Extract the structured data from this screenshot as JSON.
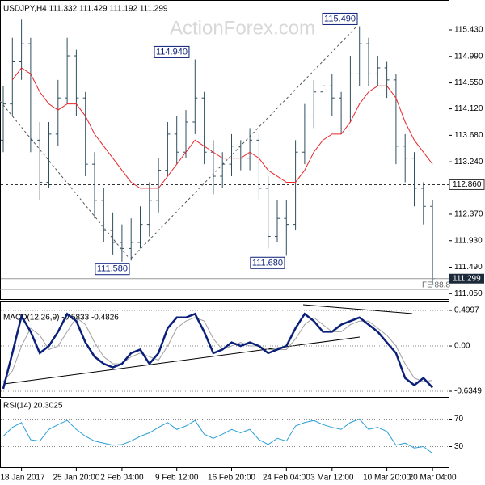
{
  "chart_data": [
    {
      "type": "ohlc",
      "title": "USDJPY,H4  111.332 111.429 111.192 111.299",
      "watermark": "ActionForex.com",
      "color": "#2f4f5f",
      "categories": [
        null,
        null,
        "18 Jan 2017",
        null,
        null,
        null,
        null,
        null,
        "25 Jan 20:00",
        null,
        null,
        null,
        null,
        "2 Feb 04:00",
        null,
        null,
        null,
        null,
        null,
        "9 Feb 12:00",
        null,
        null,
        null,
        null,
        null,
        "16 Feb 20:00",
        null,
        null,
        null,
        null,
        null,
        "24 Feb 04:00",
        null,
        null,
        null,
        null,
        "3 Mar 12:00",
        null,
        null,
        null,
        null,
        null,
        "10 Mar 20:00",
        null,
        null,
        null,
        null,
        "20 Mar 04:00"
      ],
      "open": [
        113.6,
        114.2,
        114.9,
        115.2,
        113.6,
        112.9,
        113.7,
        114.3,
        115.0,
        114.3,
        113.2,
        112.6,
        112.1,
        111.9,
        111.8,
        111.9,
        112.2,
        112.6,
        113.1,
        113.7,
        113.4,
        113.9,
        114.3,
        113.4,
        113.0,
        113.2,
        113.5,
        113.3,
        113.6,
        112.8,
        112.0,
        112.3,
        112.2,
        113.4,
        114.0,
        114.4,
        114.5,
        114.3,
        114.0,
        114.7,
        115.2,
        114.7,
        114.8,
        114.6,
        113.5,
        113.3,
        112.8,
        112.5
      ],
      "high": [
        114.5,
        115.3,
        115.6,
        115.3,
        113.9,
        113.9,
        114.6,
        115.3,
        115.1,
        114.4,
        113.4,
        112.8,
        112.4,
        112.2,
        112.3,
        112.5,
        112.9,
        113.3,
        113.9,
        114.0,
        114.1,
        114.94,
        114.4,
        113.6,
        113.4,
        113.7,
        113.6,
        113.8,
        113.7,
        113.0,
        112.6,
        112.6,
        113.6,
        114.2,
        114.6,
        114.8,
        114.7,
        114.4,
        115.0,
        115.49,
        115.3,
        115.0,
        114.9,
        114.7,
        113.7,
        113.4,
        112.9,
        112.6
      ],
      "low": [
        113.4,
        114.0,
        114.6,
        113.4,
        112.6,
        112.8,
        113.5,
        114.2,
        114.0,
        113.0,
        112.3,
        111.9,
        111.7,
        111.58,
        111.6,
        111.8,
        112.0,
        112.4,
        113.0,
        113.2,
        113.3,
        113.7,
        113.2,
        112.7,
        112.8,
        113.0,
        113.1,
        113.1,
        112.6,
        111.8,
        111.9,
        111.68,
        112.1,
        113.2,
        113.8,
        114.2,
        114.0,
        113.7,
        113.9,
        114.5,
        114.5,
        114.5,
        114.3,
        113.2,
        112.9,
        112.5,
        112.2,
        111.192
      ],
      "close": [
        114.2,
        114.9,
        115.2,
        113.6,
        112.9,
        113.7,
        114.3,
        115.0,
        114.3,
        113.2,
        112.6,
        112.1,
        111.9,
        111.8,
        111.9,
        112.2,
        112.6,
        113.1,
        113.7,
        113.4,
        113.9,
        114.3,
        113.4,
        113.0,
        113.2,
        113.5,
        113.3,
        113.6,
        112.8,
        112.0,
        112.3,
        112.2,
        113.4,
        114.0,
        114.4,
        114.5,
        114.3,
        114.0,
        114.7,
        115.2,
        114.7,
        114.8,
        114.6,
        113.5,
        113.3,
        112.8,
        112.5,
        111.299
      ],
      "ma": {
        "color": "#e8262a",
        "values": [
          null,
          114.6,
          114.8,
          114.7,
          114.4,
          114.2,
          114.1,
          114.2,
          114.2,
          114.0,
          113.7,
          113.5,
          113.3,
          113.1,
          112.9,
          112.8,
          112.8,
          112.8,
          113.0,
          113.2,
          113.4,
          113.6,
          113.5,
          113.4,
          113.3,
          113.3,
          113.3,
          113.4,
          113.3,
          113.1,
          113.0,
          112.9,
          112.9,
          113.1,
          113.4,
          113.6,
          113.7,
          113.7,
          113.9,
          114.2,
          114.4,
          114.5,
          114.5,
          114.3,
          113.9,
          113.6,
          113.4,
          113.2
        ]
      },
      "ylim": [
        110.96,
        115.9
      ],
      "yticks": [
        {
          "value": 115.43,
          "label": "115.430"
        },
        {
          "value": 114.99,
          "label": "114.990"
        },
        {
          "value": 114.55,
          "label": "114.550"
        },
        {
          "value": 114.12,
          "label": "114.120"
        },
        {
          "value": 113.68,
          "label": "113.680"
        },
        {
          "value": 113.24,
          "label": "113.240"
        },
        {
          "value": 112.37,
          "label": "112.370"
        },
        {
          "value": 111.93,
          "label": "111.930"
        },
        {
          "value": 111.49,
          "label": "111.490"
        },
        {
          "value": 111.05,
          "label": "111.050"
        }
      ],
      "level": {
        "value": 112.86,
        "label": "112.860"
      },
      "last": {
        "value": 111.299,
        "label": "111.299"
      },
      "annotations": [
        {
          "value": 114.94,
          "label": "114.940"
        },
        {
          "value": 115.49,
          "label": "115.490"
        },
        {
          "value": 111.58,
          "label": "111.580"
        },
        {
          "value": 111.68,
          "label": "111.680"
        }
      ],
      "fe_label": "FE 88.8"
    },
    {
      "type": "macd",
      "title": "MACD(12,26,9) -0.5833 -0.4826",
      "lines": [
        {
          "color": "#0a1f7a",
          "values": [
            -0.6,
            -0.1,
            0.42,
            0.2,
            -0.1,
            0.0,
            0.2,
            0.45,
            0.35,
            0.05,
            -0.15,
            -0.25,
            -0.3,
            -0.25,
            -0.1,
            -0.05,
            -0.25,
            -0.1,
            0.25,
            0.4,
            0.4,
            0.45,
            0.2,
            -0.1,
            -0.05,
            0.05,
            0.0,
            0.05,
            0.0,
            -0.1,
            -0.05,
            0.0,
            0.25,
            0.45,
            0.35,
            0.2,
            0.2,
            0.3,
            0.35,
            0.4,
            0.3,
            0.2,
            0.05,
            -0.1,
            -0.45,
            -0.55,
            -0.45,
            -0.5833
          ]
        },
        {
          "color": "#a0a0a0",
          "values": [
            -0.5,
            -0.35,
            0.0,
            0.25,
            0.15,
            -0.05,
            0.0,
            0.2,
            0.4,
            0.3,
            0.05,
            -0.15,
            -0.25,
            -0.25,
            -0.15,
            -0.1,
            -0.15,
            -0.2,
            0.0,
            0.25,
            0.35,
            0.4,
            0.35,
            0.1,
            -0.05,
            0.0,
            0.05,
            0.0,
            0.0,
            -0.05,
            -0.05,
            -0.05,
            0.1,
            0.3,
            0.4,
            0.3,
            0.2,
            0.2,
            0.3,
            0.35,
            0.35,
            0.25,
            0.15,
            0.0,
            -0.25,
            -0.45,
            -0.5,
            -0.4826
          ]
        }
      ],
      "ylim": [
        -0.6349,
        0.4997
      ],
      "yticks": [
        0.4997,
        {
          "value": 0,
          "label": "0.00"
        },
        -0.6349
      ]
    },
    {
      "type": "rsi",
      "title": "RSI(14) 20.3025",
      "color": "#2a9fd6",
      "values": [
        45,
        58,
        65,
        40,
        38,
        55,
        62,
        68,
        55,
        45,
        38,
        35,
        32,
        33,
        38,
        45,
        50,
        58,
        65,
        55,
        60,
        68,
        48,
        42,
        48,
        55,
        50,
        55,
        40,
        33,
        42,
        38,
        60,
        65,
        68,
        62,
        58,
        55,
        65,
        70,
        55,
        58,
        52,
        32,
        35,
        28,
        30,
        20.3025
      ],
      "ylim": [
        0,
        100
      ],
      "yticks": [
        30,
        70
      ]
    }
  ]
}
